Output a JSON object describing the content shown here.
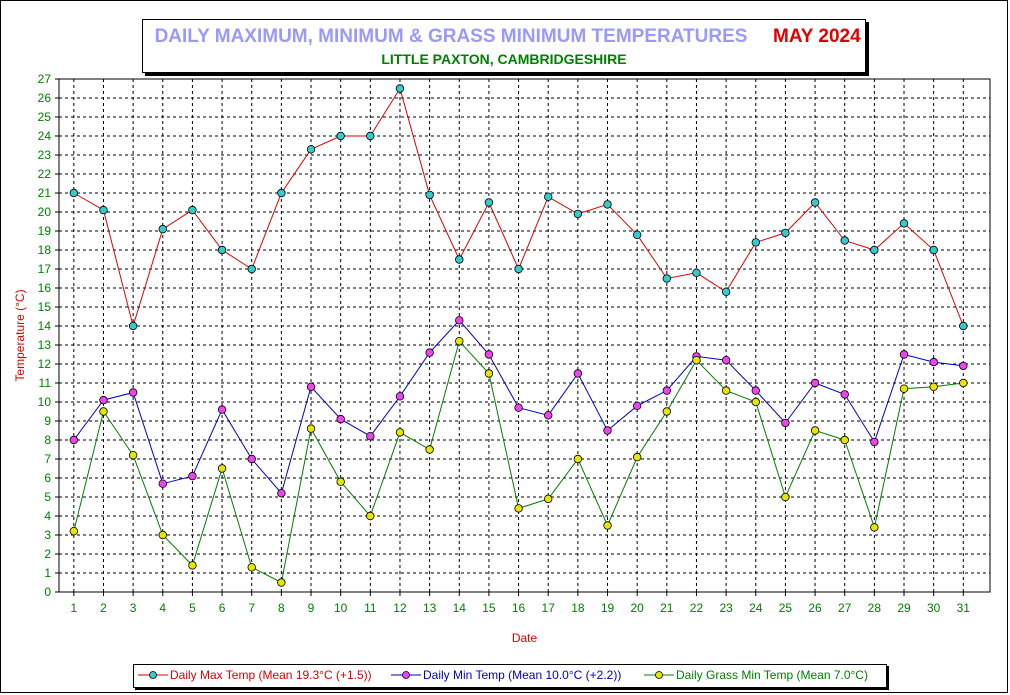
{
  "chart_data": {
    "type": "line",
    "title": "DAILY MAXIMUM, MINIMUM & GRASS MINIMUM TEMPERATURES",
    "title_month": "MAY 2024",
    "subtitle": "LITTLE PAXTON, CAMBRIDGESHIRE",
    "xlabel": "Date",
    "ylabel": "Temperature (°C)",
    "ylim": [
      0,
      27
    ],
    "x": [
      1,
      2,
      3,
      4,
      5,
      6,
      7,
      8,
      9,
      10,
      11,
      12,
      13,
      14,
      15,
      16,
      17,
      18,
      19,
      20,
      21,
      22,
      23,
      24,
      25,
      26,
      27,
      28,
      29,
      30,
      31
    ],
    "y_ticks": [
      0,
      1,
      2,
      3,
      4,
      5,
      6,
      7,
      8,
      9,
      10,
      11,
      12,
      13,
      14,
      15,
      16,
      17,
      18,
      19,
      20,
      21,
      22,
      23,
      24,
      25,
      26,
      27
    ],
    "grid": true,
    "legend_position": "bottom",
    "series": [
      {
        "name": "Daily Max Temp (Mean 19.3°C (+1.5))",
        "line_color": "#e00000",
        "marker_color": "#33cccc",
        "values": [
          21.0,
          20.1,
          14.0,
          19.1,
          20.1,
          18.0,
          17.0,
          21.0,
          23.3,
          24.0,
          24.0,
          26.5,
          20.9,
          17.5,
          20.5,
          17.0,
          20.8,
          19.9,
          20.4,
          18.8,
          16.5,
          16.8,
          15.8,
          18.4,
          18.9,
          20.5,
          18.5,
          18.0,
          19.4,
          18.0,
          14.0
        ]
      },
      {
        "name": "Daily Min Temp (Mean 10.0°C (+2.2))",
        "line_color": "#0000cc",
        "marker_color": "#ee44ee",
        "values": [
          8.0,
          10.1,
          10.5,
          5.7,
          6.1,
          9.6,
          7.0,
          5.2,
          10.8,
          9.1,
          8.2,
          10.3,
          12.6,
          14.3,
          12.5,
          9.7,
          9.3,
          11.5,
          8.5,
          9.8,
          10.6,
          12.4,
          12.2,
          10.6,
          8.9,
          11.0,
          10.4,
          7.9,
          12.5,
          12.1,
          11.9
        ]
      },
      {
        "name": "Daily Grass Min Temp (Mean 7.0°C)",
        "line_color": "#008000",
        "marker_color": "#e6e600",
        "values": [
          3.2,
          9.5,
          7.2,
          3.0,
          1.4,
          6.5,
          1.3,
          0.5,
          8.6,
          5.8,
          4.0,
          8.4,
          7.5,
          13.2,
          11.5,
          4.4,
          4.9,
          7.0,
          3.5,
          7.1,
          9.5,
          12.2,
          10.6,
          10.0,
          5.0,
          8.5,
          8.0,
          3.4,
          10.7,
          10.8,
          11.0
        ]
      }
    ]
  },
  "colors": {
    "tick_labels": "#008000",
    "axis_titles": "#e00000",
    "gridline": "#000000"
  }
}
